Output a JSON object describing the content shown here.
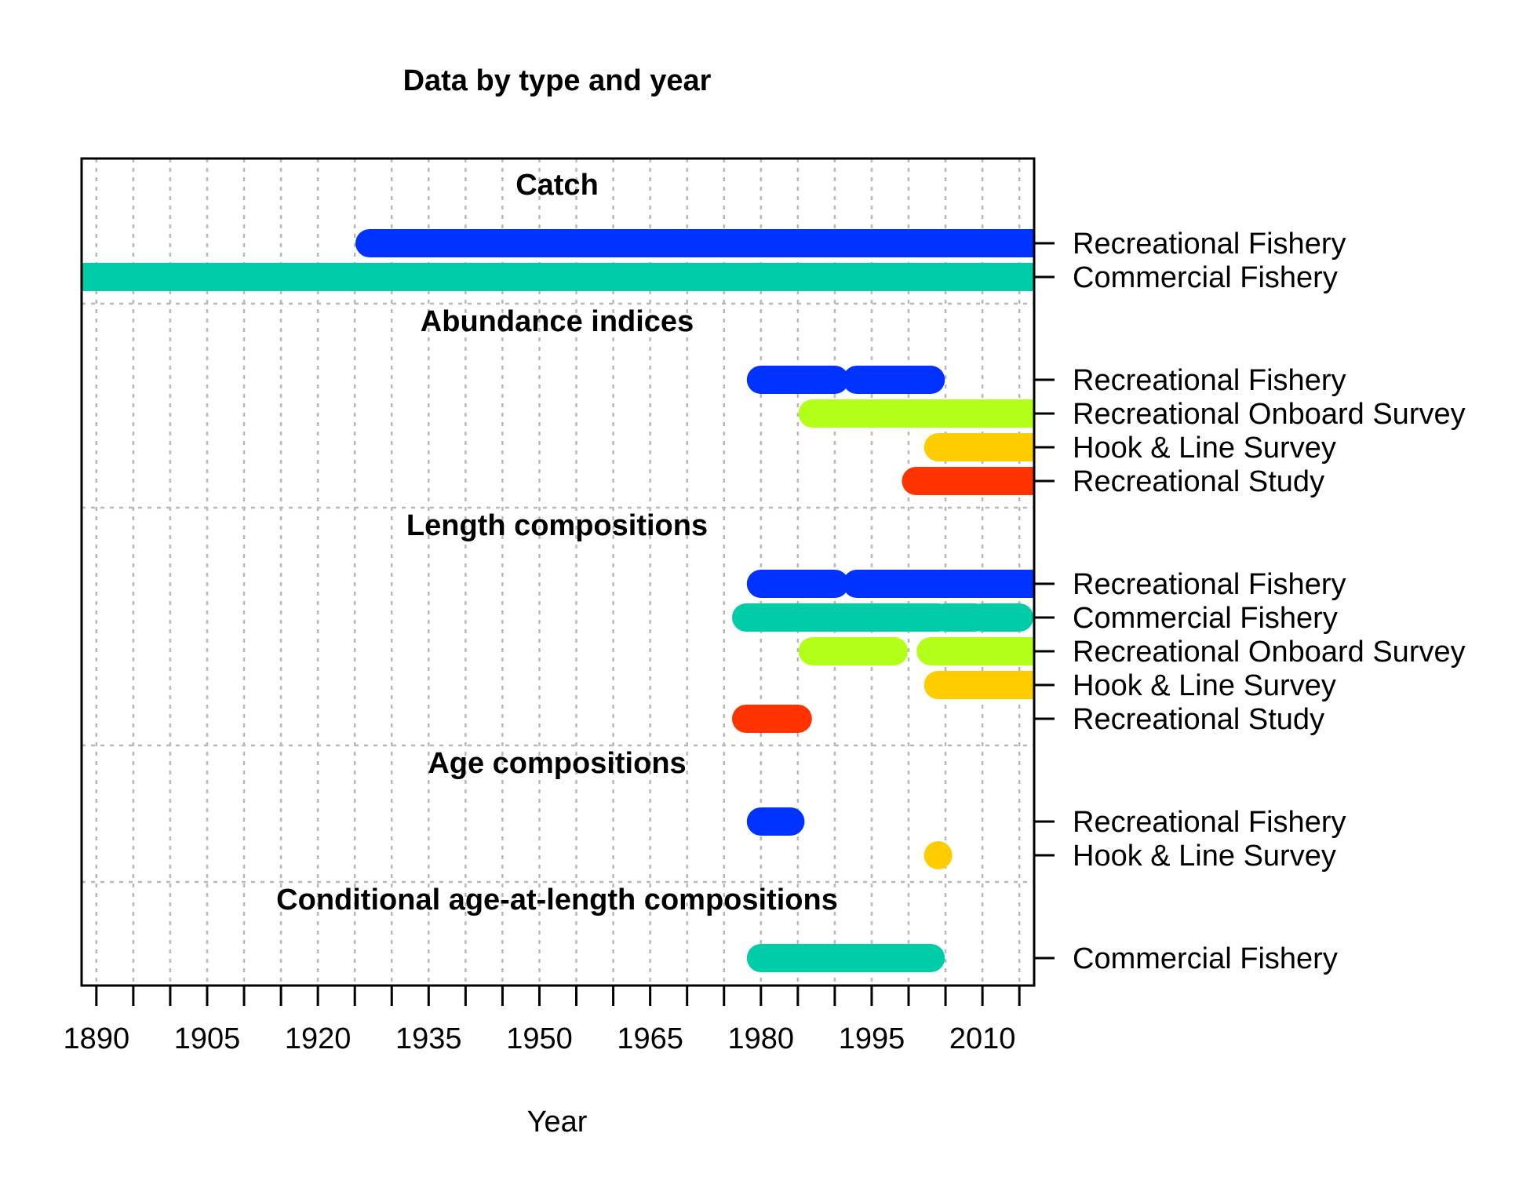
{
  "colors": {
    "Recreational Fishery": "#0033FF",
    "Commercial Fishery": "#00CCA8",
    "Recreational Onboard Survey": "#B3FF1A",
    "Hook & Line Survey": "#FFCC00",
    "Recreational Study": "#FF3300"
  },
  "chart_data": {
    "type": "timeline",
    "title": "Data by type and year",
    "xlabel": "Year",
    "xlim": [
      1888,
      2017
    ],
    "x_ticks": [
      1890,
      1905,
      1920,
      1935,
      1950,
      1965,
      1980,
      1995,
      2010
    ],
    "grid": true,
    "sections": [
      {
        "title": "Catch",
        "rows": [
          {
            "label": "Recreational Fishery",
            "segments": [
              [
                1927,
                2016
              ]
            ]
          },
          {
            "label": "Commercial Fishery",
            "segments": [
              [
                1889,
                2016
              ]
            ]
          }
        ]
      },
      {
        "title": "Abundance indices",
        "rows": [
          {
            "label": "Recreational Fishery",
            "segments": [
              [
                1980,
                1990
              ],
              [
                1993,
                2003
              ]
            ]
          },
          {
            "label": "Recreational Onboard Survey",
            "segments": [
              [
                1987,
                2016
              ]
            ]
          },
          {
            "label": "Hook & Line Survey",
            "segments": [
              [
                2004,
                2016
              ]
            ]
          },
          {
            "label": "Recreational Study",
            "segments": [
              [
                2001,
                2016
              ]
            ]
          }
        ]
      },
      {
        "title": "Length compositions",
        "rows": [
          {
            "label": "Recreational Fishery",
            "segments": [
              [
                1980,
                1990
              ],
              [
                1993,
                2016
              ]
            ]
          },
          {
            "label": "Commercial Fishery",
            "segments": [
              [
                1978,
                2002
              ],
              [
                2002,
                2004
              ],
              [
                2005,
                2009
              ],
              [
                2010,
                2015
              ]
            ]
          },
          {
            "label": "Recreational Onboard Survey",
            "segments": [
              [
                1987,
                1998
              ],
              [
                2003,
                2016
              ]
            ]
          },
          {
            "label": "Hook & Line Survey",
            "segments": [
              [
                2004,
                2016
              ]
            ]
          },
          {
            "label": "Recreational Study",
            "segments": [
              [
                1978,
                1985
              ]
            ]
          }
        ]
      },
      {
        "title": "Age compositions",
        "rows": [
          {
            "label": "Recreational Fishery",
            "segments": [
              [
                1980,
                1984
              ]
            ]
          },
          {
            "label": "Hook & Line Survey",
            "segments": [
              [
                2004,
                2004
              ]
            ]
          }
        ]
      },
      {
        "title": "Conditional age-at-length compositions",
        "rows": [
          {
            "label": "Commercial Fishery",
            "segments": [
              [
                1980,
                2003
              ]
            ]
          }
        ]
      }
    ]
  }
}
